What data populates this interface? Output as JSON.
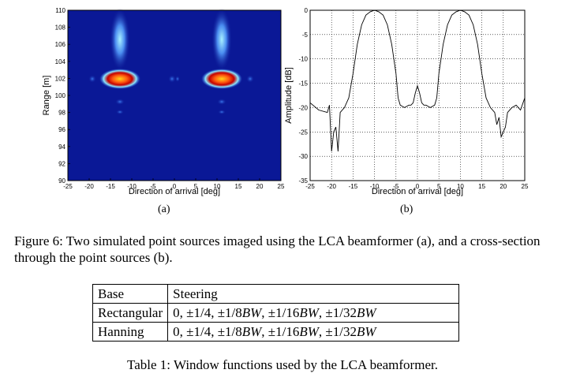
{
  "figure": {
    "panel_a": {
      "xlabel": "Direction of arrival [deg]",
      "ylabel": "Range [m]",
      "sublabel": "(a)",
      "xticks": [
        -25,
        -20,
        -15,
        -10,
        -5,
        0,
        5,
        10,
        15,
        20,
        25
      ],
      "yticks": [
        90,
        92,
        94,
        96,
        98,
        100,
        102,
        104,
        106,
        108,
        110
      ]
    },
    "panel_b": {
      "xlabel": "Direction of arrival [deg]",
      "ylabel": "Amplitude [dB]",
      "sublabel": "(b)",
      "xticks": [
        -25,
        -20,
        -15,
        -10,
        -5,
        0,
        5,
        10,
        15,
        20,
        25
      ],
      "yticks": [
        0,
        -5,
        -10,
        -15,
        -20,
        -25,
        -30,
        -35
      ]
    },
    "caption": "Figure 6: Two simulated point sources imaged using the LCA beamformer (a), and a cross-section through the point sources (b)."
  },
  "chart_data": [
    {
      "type": "heatmap",
      "xlabel": "Direction of arrival [deg]",
      "ylabel": "Range [m]",
      "xlim": [
        -25,
        25
      ],
      "ylim": [
        90,
        110
      ],
      "grid": false,
      "sources": [
        {
          "direction_deg": -10,
          "range_m": 101.5,
          "peak": "high"
        },
        {
          "direction_deg": 10,
          "range_m": 101.5,
          "peak": "high"
        }
      ],
      "colors": {
        "background": "#0a1896",
        "low": "#3a6fe8",
        "mid": "#8fe8ff",
        "high": "#ff2a10",
        "peak": "#ffd21a"
      }
    },
    {
      "type": "line",
      "xlabel": "Direction of arrival [deg]",
      "ylabel": "Amplitude [dB]",
      "xlim": [
        -25,
        25
      ],
      "ylim": [
        -35,
        0
      ],
      "grid": true,
      "x": [
        -25,
        -23,
        -21,
        -20.5,
        -20,
        -19.5,
        -19,
        -18.5,
        -18,
        -17,
        -16,
        -15,
        -14,
        -13,
        -12,
        -11,
        -10,
        -9,
        -8,
        -7,
        -6,
        -5,
        -4.5,
        -4,
        -3,
        -2,
        -1.5,
        -1,
        -0.5,
        0,
        0.5,
        1,
        1.5,
        2,
        3,
        4,
        4.5,
        5,
        6,
        7,
        8,
        9,
        10,
        11,
        12,
        13,
        14,
        15,
        16,
        17,
        18,
        18.5,
        19,
        19.5,
        20,
        20.5,
        21,
        22,
        23,
        24,
        25
      ],
      "values": [
        -19,
        -20.5,
        -21,
        -19.5,
        -29,
        -25,
        -24,
        -29,
        -21,
        -20,
        -18,
        -13,
        -7,
        -3,
        -1,
        -0.3,
        0,
        -0.3,
        -1,
        -3,
        -7,
        -13,
        -18,
        -19.5,
        -20,
        -19.5,
        -19.5,
        -19,
        -17,
        -15.5,
        -17,
        -19,
        -19.5,
        -19.5,
        -20,
        -19.5,
        -18,
        -13,
        -7,
        -3,
        -1,
        -0.3,
        0,
        -0.3,
        -1,
        -3,
        -7,
        -13,
        -18,
        -20,
        -21,
        -23.5,
        -22,
        -26,
        -25,
        -24,
        -21,
        -20,
        -19.5,
        -20.5,
        -18
      ]
    },
    {
      "type": "table",
      "header": [
        "Base",
        "Steering"
      ],
      "rows": [
        [
          "Rectangular",
          "0, ±1/4, ±1/8BW, ±1/16BW, ±1/32BW"
        ],
        [
          "Hanning",
          "0, ±1/4, ±1/8BW, ±1/16BW, ±1/32BW"
        ]
      ]
    }
  ],
  "table": {
    "header": {
      "base": "Base",
      "steering": "Steering"
    },
    "rows": [
      {
        "base": "Rectangular",
        "s_prefix": "0, ±1/4, ±1/8",
        "s1": "BW",
        "s_mid1": ", ±1/16",
        "s2": "BW",
        "s_mid2": ", ±1/32",
        "s3": "BW"
      },
      {
        "base": "Hanning",
        "s_prefix": "0, ±1/4, ±1/8",
        "s1": "BW",
        "s_mid1": ", ±1/16",
        "s2": "BW",
        "s_mid2": ", ±1/32",
        "s3": "BW"
      }
    ],
    "caption": "Table 1: Window functions used by the LCA beamformer."
  }
}
